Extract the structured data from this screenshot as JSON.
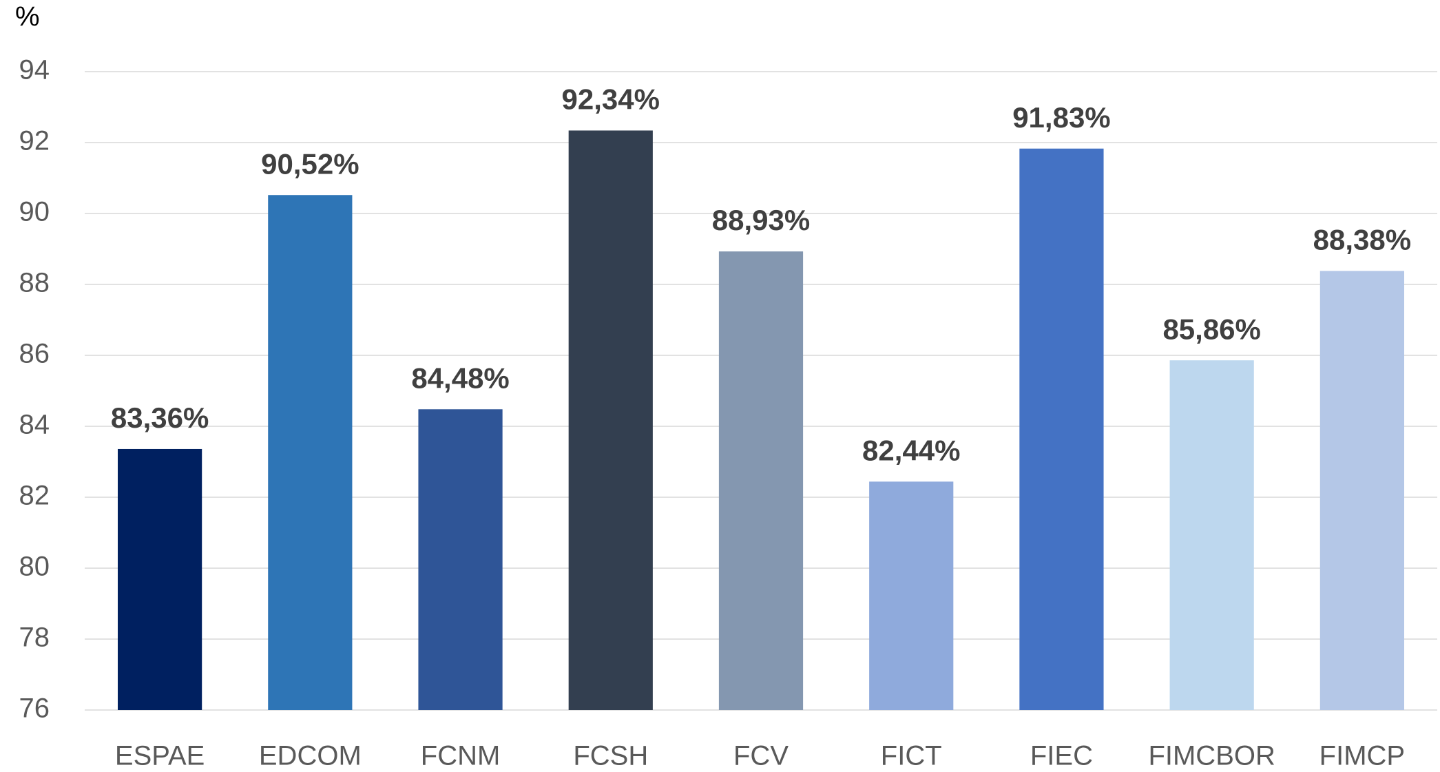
{
  "chart_data": {
    "type": "bar",
    "y_axis_label": "%",
    "categories": [
      "ESPAE",
      "EDCOM",
      "FCNM",
      "FCSH",
      "FCV",
      "FICT",
      "FIEC",
      "FIMCBOR",
      "FIMCP"
    ],
    "values": [
      83.36,
      90.52,
      84.48,
      92.34,
      88.93,
      82.44,
      91.83,
      85.86,
      88.38
    ],
    "value_labels": [
      "83,36%",
      "90,52%",
      "84,48%",
      "92,34%",
      "88,93%",
      "82,44%",
      "91,83%",
      "85,86%",
      "88,38%"
    ],
    "colors": [
      "#002060",
      "#2e75b6",
      "#2f5597",
      "#333f50",
      "#8497b0",
      "#8faadc",
      "#4472c4",
      "#bdd7ee",
      "#b4c7e7"
    ],
    "ylim": [
      76,
      94
    ],
    "yticks": [
      76,
      78,
      80,
      82,
      84,
      86,
      88,
      90,
      92,
      94
    ],
    "grid": true
  }
}
